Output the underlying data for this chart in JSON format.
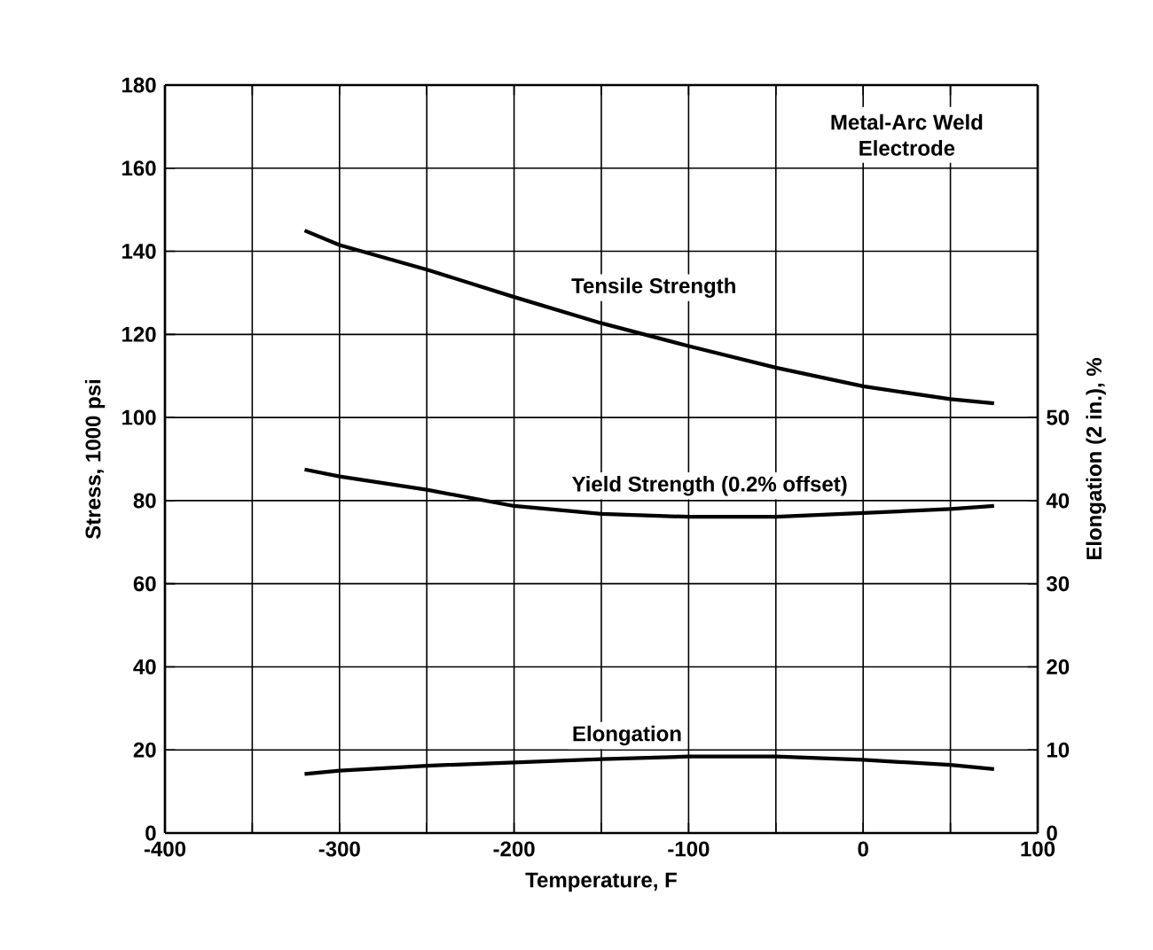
{
  "chart_data": {
    "type": "line",
    "xlabel": "Temperature, F",
    "ylabel": "Stress, 1000 psi",
    "y2label": "Elongation (2 in.), %",
    "annotations": [
      "Metal-Arc Weld",
      "Electrode"
    ],
    "xlim": [
      -400,
      100
    ],
    "xticks": [
      -400,
      {
        "value": -350,
        "label": null
      },
      -300,
      {
        "value": -250,
        "label": null
      },
      -200,
      {
        "value": -150,
        "label": null
      },
      -100,
      {
        "value": -50,
        "label": null
      },
      0,
      {
        "value": 50,
        "label": null
      },
      100
    ],
    "ylim": [
      0,
      180
    ],
    "yticks": [
      0,
      20,
      40,
      60,
      80,
      100,
      120,
      140,
      160,
      180
    ],
    "y2lim": [
      0,
      90
    ],
    "y2ticks": [
      0,
      10,
      20,
      30,
      40,
      50
    ],
    "grid": true,
    "series": [
      {
        "name": "Tensile Strength",
        "color": "#000000",
        "x": [
          -320,
          -300,
          -250,
          -200,
          -150,
          -100,
          -50,
          0,
          50,
          75
        ],
        "values": [
          145,
          141.5,
          135.6,
          129,
          122.7,
          117.2,
          112,
          107.5,
          104.4,
          103.4
        ]
      },
      {
        "name": "Yield Strength (0.2% offset)",
        "color": "#000000",
        "x": [
          -320,
          -300,
          -250,
          -200,
          -150,
          -100,
          -50,
          0,
          50,
          75
        ],
        "values": [
          87.5,
          85.8,
          82.6,
          78.7,
          76.8,
          76.1,
          76.1,
          77,
          78,
          78.7
        ]
      },
      {
        "name": "Elongation",
        "color": "#000000",
        "axis": "y2",
        "x": [
          -320,
          -300,
          -250,
          -200,
          -150,
          -100,
          -50,
          0,
          50,
          75
        ],
        "values": [
          7.1,
          7.5,
          8.1,
          8.5,
          8.9,
          9.2,
          9.2,
          8.8,
          8.2,
          7.7
        ]
      }
    ]
  }
}
